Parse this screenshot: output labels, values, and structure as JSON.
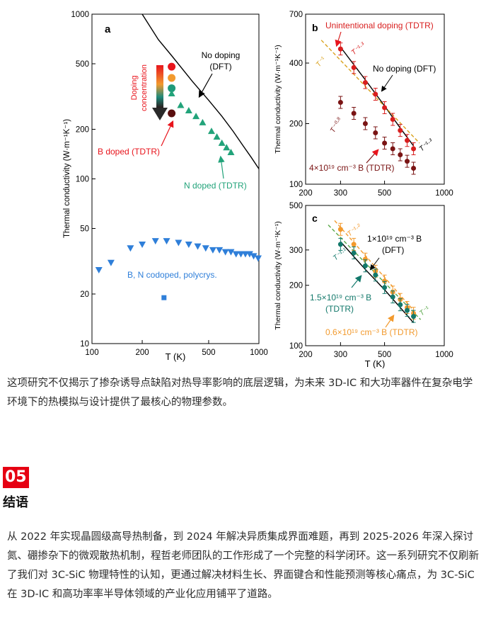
{
  "chart_data": [
    {
      "type": "scatter",
      "panel": "a",
      "xlabel": "T (K)",
      "ylabel": "Thermal conductivity (W·m⁻¹K⁻¹)",
      "xscale": "log",
      "yscale": "log",
      "xlim": [
        100,
        1000
      ],
      "ylim": [
        10,
        1000
      ],
      "xticks": [
        "100",
        "200",
        "500",
        "1000"
      ],
      "yticks": [
        "10",
        "20",
        "50",
        "100",
        "200",
        "500",
        "1000"
      ],
      "annotations": [
        "No doping",
        "(DFT)",
        "Doping",
        "concentration",
        "B doped (TDTR)",
        "N doped (TDTR)",
        "B, N codoped, polycrys."
      ],
      "series": [
        {
          "marker": "line",
          "color": "#000000",
          "x": [
            200,
            250,
            300,
            400,
            500,
            600,
            700,
            800,
            900,
            1000
          ],
          "y": [
            1000,
            700,
            560,
            390,
            300,
            240,
            195,
            160,
            135,
            115
          ]
        },
        {
          "marker": "circle",
          "color": "#e8141c",
          "x": [
            300
          ],
          "y": [
            480
          ]
        },
        {
          "marker": "circle",
          "color": "#f29a2e",
          "x": [
            300
          ],
          "y": [
            410
          ]
        },
        {
          "marker": "circle",
          "color": "#1f9a7a",
          "x": [
            300
          ],
          "y": [
            355
          ]
        },
        {
          "marker": "circle",
          "color": "#5a0e0e",
          "x": [
            300
          ],
          "y": [
            250
          ]
        },
        {
          "marker": "triangle-up",
          "color": "#22a37a",
          "x": [
            300,
            340,
            380,
            420,
            460,
            520,
            560,
            600,
            640,
            680
          ],
          "y": [
            330,
            280,
            260,
            240,
            220,
            195,
            180,
            165,
            155,
            145
          ]
        },
        {
          "marker": "triangle-down",
          "color": "#2f7fd9",
          "x": [
            110,
            130,
            170,
            200,
            240,
            280,
            330,
            380,
            430,
            480,
            530,
            580,
            630,
            680,
            730,
            780,
            830,
            880,
            930,
            990
          ],
          "y": [
            28,
            31,
            38,
            40,
            42,
            42,
            41,
            40,
            39,
            38,
            37,
            37,
            36,
            36,
            35,
            35,
            35,
            35,
            34,
            33
          ]
        },
        {
          "marker": "square",
          "color": "#2f7fd9",
          "x": [
            270
          ],
          "y": [
            19
          ]
        }
      ]
    },
    {
      "type": "scatter",
      "panel": "b",
      "ylabel": "Thermal conductivity (W·m⁻¹K⁻¹)",
      "xscale": "log",
      "yscale": "log",
      "xlim": [
        200,
        1000
      ],
      "ylim": [
        100,
        700
      ],
      "xticks": [
        "200",
        "300",
        "500",
        "1000"
      ],
      "yticks": [
        "100",
        "200",
        "400",
        "700"
      ],
      "annotations": [
        "Unintentional doping (TDTR)",
        "No doping (DFT)",
        "T⁻¹",
        "T⁻¹·³",
        "T⁻⁰·⁸",
        "T⁻¹·³",
        "4×10¹⁹ cm⁻³ B (TDTR)"
      ],
      "series": [
        {
          "marker": "line",
          "color": "#000000",
          "x": [
            300,
            400,
            500,
            600,
            700
          ],
          "y": [
            480,
            330,
            245,
            190,
            155
          ]
        },
        {
          "marker": "dashed",
          "color": "#d9a21e",
          "x": [
            240,
            750
          ],
          "y": [
            520,
            160
          ]
        },
        {
          "marker": "circle",
          "color": "#d81e1e",
          "x": [
            300,
            350,
            400,
            450,
            500,
            550,
            600,
            650,
            700
          ],
          "y": [
            470,
            380,
            320,
            280,
            240,
            210,
            185,
            165,
            150
          ]
        },
        {
          "marker": "circle",
          "color": "#7a1414",
          "x": [
            300,
            350,
            400,
            450,
            500,
            550,
            600,
            650,
            700
          ],
          "y": [
            255,
            225,
            200,
            180,
            160,
            150,
            140,
            130,
            120
          ]
        }
      ]
    },
    {
      "type": "scatter",
      "panel": "c",
      "xlabel": "T (K)",
      "ylabel": "Thermal conductivity (W·m⁻¹K⁻¹)",
      "xscale": "log",
      "yscale": "log",
      "xlim": [
        200,
        1000
      ],
      "ylim": [
        100,
        500
      ],
      "xticks": [
        "200",
        "300",
        "500",
        "1000"
      ],
      "yticks": [
        "100",
        "200",
        "300",
        "500"
      ],
      "annotations": [
        "T⁻¹·²",
        "T⁻¹·¹",
        "1×10¹⁹ cm⁻³ B",
        "(DFT)",
        "1.5×10¹⁹ cm⁻³ B",
        "(TDTR)",
        "0.6×10¹⁹ cm⁻³ B (TDTR)",
        "T⁻¹"
      ],
      "series": [
        {
          "marker": "line",
          "color": "#000000",
          "x": [
            300,
            400,
            500,
            600,
            700
          ],
          "y": [
            330,
            240,
            190,
            155,
            130
          ]
        },
        {
          "marker": "dashed",
          "color": "#5aa84a",
          "x": [
            260,
            760
          ],
          "y": [
            400,
            135
          ]
        },
        {
          "marker": "dashed",
          "color": "#f29a2e",
          "x": [
            280,
            700
          ],
          "y": [
            420,
            150
          ]
        },
        {
          "marker": "circle",
          "color": "#f29a2e",
          "x": [
            300,
            350,
            400,
            450,
            500,
            550,
            600,
            650,
            700
          ],
          "y": [
            380,
            320,
            270,
            235,
            210,
            185,
            170,
            155,
            145
          ]
        },
        {
          "marker": "circle",
          "color": "#13796b",
          "x": [
            300,
            350,
            400,
            450,
            500,
            550,
            600,
            650,
            700
          ],
          "y": [
            320,
            290,
            250,
            225,
            195,
            175,
            160,
            150,
            140
          ]
        }
      ]
    }
  ],
  "text": {
    "panel_a": "a",
    "panel_b": "b",
    "panel_c": "c",
    "p1": "这项研究不仅揭示了掺杂诱导点缺陷对热导率影响的底层逻辑，为未来 3D-IC 和大功率器件在复杂电学环境下的热模拟与设计提供了最核心的物理参数。",
    "section_number": "05",
    "section_title": "结语",
    "p2": "从 2022 年实现晶圆级高导热制备，到 2024 年解决异质集成界面难题，再到 2025-2026 年深入探讨氮、硼掺杂下的微观散热机制，程哲老师团队的工作形成了一个完整的科学闭环。这一系列研究不仅刷新了我们对 3C-SiC 物理特性的认知，更通过解决材料生长、界面键合和性能预测等核心痛点，为 3C-SiC 在 3D-IC 和高功率率半导体领域的产业化应用铺平了道路。"
  }
}
